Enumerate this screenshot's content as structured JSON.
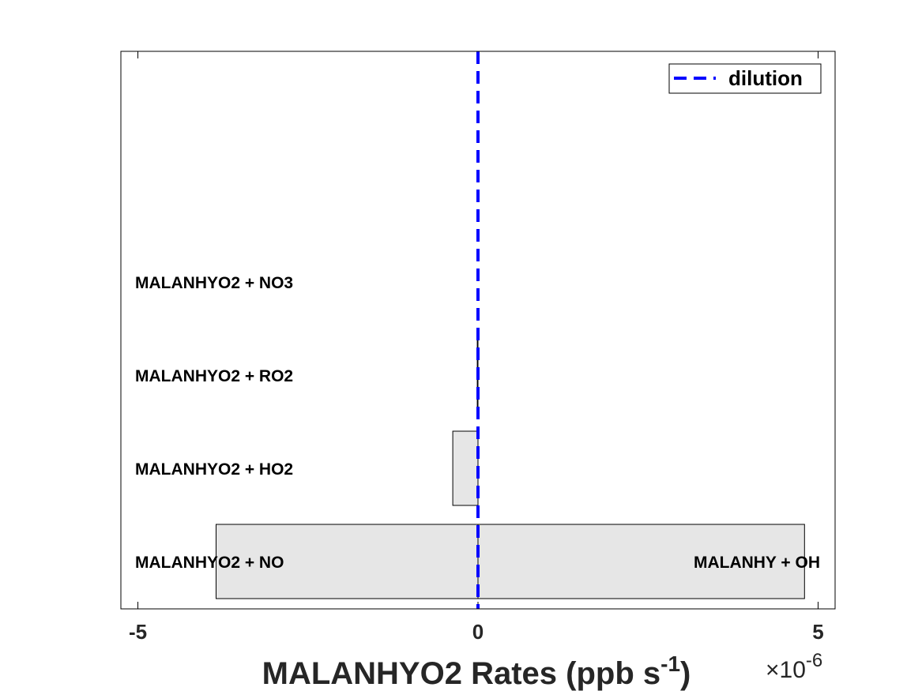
{
  "chart_data": {
    "type": "bar",
    "orientation": "horizontal",
    "stacked": true,
    "categories": [
      "MALANHYO2 + NO",
      "MALANHYO2 + HO2",
      "MALANHYO2 + RO2",
      "MALANHYO2 + NO3"
    ],
    "series": [
      {
        "role": "loss",
        "values": [
          -3.85e-06,
          -3.7e-07,
          -1e-08,
          0
        ]
      },
      {
        "role": "production",
        "values": [
          4.8e-06,
          0,
          0,
          0
        ]
      }
    ],
    "right_labels": [
      "MALANHY + OH",
      "",
      "",
      ""
    ],
    "reference_lines": [
      {
        "name": "dilution",
        "x": 0,
        "color": "#0000ff",
        "style": "dashed"
      }
    ],
    "xlim": [
      -5.25e-06,
      5.25e-06
    ],
    "xticks": [
      -5e-06,
      0,
      5e-06
    ],
    "xtick_labels": [
      "-5",
      "0",
      "5"
    ],
    "x_exponent_label": "×10",
    "x_exponent": "-6",
    "xlabel_main": "MALANHYO2 Rates (ppb s",
    "xlabel_sup": "-1",
    "xlabel_close": ")",
    "ylabel": "",
    "legend": {
      "position": "top-right",
      "entries": [
        "dilution"
      ]
    },
    "grid": false,
    "colors": {
      "bar_fill": "#e6e6e6",
      "bar_edge": "#000000",
      "dilution": "#0000ff"
    }
  }
}
